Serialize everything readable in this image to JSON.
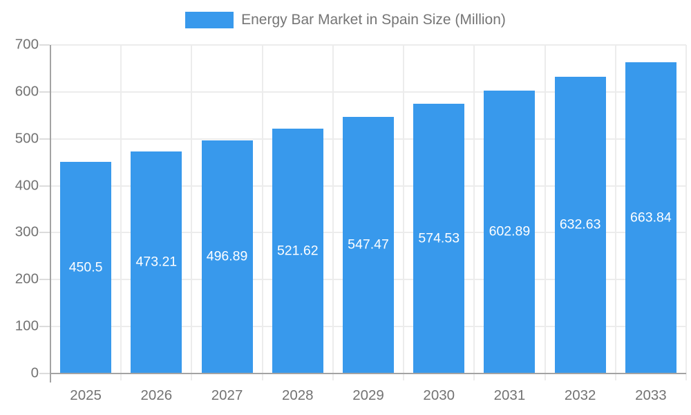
{
  "legend": {
    "label": "Energy Bar Market in Spain Size (Million)"
  },
  "chart_data": {
    "type": "bar",
    "title": "Energy Bar Market in Spain Size (Million)",
    "categories": [
      "2025",
      "2026",
      "2027",
      "2028",
      "2029",
      "2030",
      "2031",
      "2032",
      "2033"
    ],
    "series": [
      {
        "name": "Energy Bar Market in Spain Size (Million)",
        "values": [
          450.5,
          473.21,
          496.89,
          521.62,
          547.47,
          574.53,
          602.89,
          632.63,
          663.84
        ]
      }
    ],
    "value_labels": [
      "450.5",
      "473.21",
      "496.89",
      "521.62",
      "547.47",
      "574.53",
      "602.89",
      "632.63",
      "663.84"
    ],
    "xlabel": "",
    "ylabel": "",
    "ylim": [
      0,
      700
    ],
    "ytick_step": 100,
    "yticks": [
      0,
      100,
      200,
      300,
      400,
      500,
      600,
      700
    ],
    "grid": true,
    "legend_position": "top",
    "value_label_position": "inside-center",
    "colors": {
      "bar": "#3899ec",
      "gridline": "#ececec",
      "tick": "#dcdcdc",
      "axis": "#a3a3a3",
      "axis_label": "#737373",
      "value_label": "#ffffff",
      "legend_text": "#757575",
      "background": "#ffffff"
    }
  }
}
